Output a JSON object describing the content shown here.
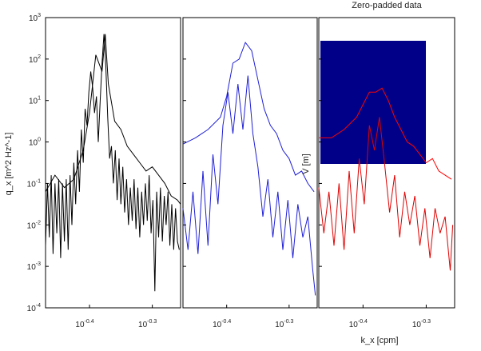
{
  "chart_data": [
    {
      "type": "line",
      "panel": "left",
      "title": "",
      "ylabel": "q_x [m^2 Hz^-1]",
      "xlabel": "",
      "xscale": "log",
      "yscale": "log",
      "xlim_log10": [
        -0.47,
        -0.255
      ],
      "ylim_log10": [
        -4,
        3
      ],
      "x_tick_labels": [
        "10^-0.4",
        "10^-0.3"
      ],
      "y_tick_labels": [
        "10^-4",
        "10^-3",
        "10^-2",
        "10^-1",
        "10^0",
        "10^1",
        "10^2",
        "10^3"
      ],
      "colors": {
        "envelope": "#000000",
        "raw": "#000000",
        "axes": "#000000"
      },
      "series": [
        {
          "role": "envelope",
          "x_log10": [
            -0.47,
            -0.455,
            -0.44,
            -0.425,
            -0.41,
            -0.4,
            -0.39,
            -0.38,
            -0.375,
            -0.37,
            -0.36,
            -0.35,
            -0.34,
            -0.33,
            -0.32,
            -0.31,
            -0.3,
            -0.29,
            -0.28,
            -0.27,
            -0.26,
            -0.255
          ],
          "y_log10": [
            -1.2,
            -0.8,
            -1.1,
            -0.9,
            -0.2,
            0.7,
            2.1,
            1.7,
            2.6,
            1.4,
            0.5,
            0.3,
            -0.1,
            -0.3,
            -0.5,
            -0.7,
            -0.6,
            -0.8,
            -1.0,
            -1.3,
            -1.4,
            -1.5
          ]
        },
        {
          "role": "raw",
          "x_log10": [
            -0.47,
            -0.467,
            -0.464,
            -0.461,
            -0.458,
            -0.455,
            -0.452,
            -0.449,
            -0.446,
            -0.443,
            -0.44,
            -0.437,
            -0.434,
            -0.431,
            -0.428,
            -0.425,
            -0.422,
            -0.419,
            -0.416,
            -0.413,
            -0.41,
            -0.407,
            -0.404,
            -0.401,
            -0.398,
            -0.395,
            -0.392,
            -0.389,
            -0.386,
            -0.383,
            -0.38,
            -0.377,
            -0.374,
            -0.371,
            -0.368,
            -0.365,
            -0.362,
            -0.359,
            -0.356,
            -0.353,
            -0.35,
            -0.347,
            -0.344,
            -0.341,
            -0.338,
            -0.335,
            -0.332,
            -0.329,
            -0.326,
            -0.323,
            -0.32,
            -0.317,
            -0.314,
            -0.311,
            -0.308,
            -0.305,
            -0.302,
            -0.299,
            -0.296,
            -0.293,
            -0.29,
            -0.287,
            -0.284,
            -0.281,
            -0.278,
            -0.275,
            -0.272,
            -0.269,
            -0.266,
            -0.263,
            -0.26,
            -0.257
          ],
          "y_log10": [
            -2.5,
            -1.0,
            -2.3,
            -0.8,
            -2.7,
            -1.0,
            -2.2,
            -0.9,
            -2.8,
            -1.0,
            -2.4,
            -0.9,
            -2.6,
            -0.8,
            -2.0,
            -0.5,
            -1.5,
            -0.2,
            -1.2,
            0.3,
            -0.5,
            0.8,
            0.4,
            1.2,
            1.7,
            1.3,
            0.7,
            1.1,
            0.0,
            1.0,
            1.9,
            2.6,
            1.8,
            0.6,
            -0.4,
            -0.1,
            -1.0,
            -0.2,
            -1.4,
            -0.4,
            -1.5,
            -0.6,
            -1.7,
            -0.9,
            -2.0,
            -1.1,
            -1.9,
            -0.9,
            -2.1,
            -1.1,
            -2.3,
            -1.2,
            -2.0,
            -1.0,
            -1.9,
            -0.8,
            -2.2,
            -1.4,
            -3.6,
            -1.2,
            -2.3,
            -1.1,
            -2.4,
            -1.3,
            -2.0,
            -1.2,
            -2.5,
            -1.5,
            -2.6,
            -1.6,
            -2.4,
            -2.6
          ]
        }
      ]
    },
    {
      "type": "line",
      "panel": "middle",
      "title": "",
      "xscale": "log",
      "yscale": "log",
      "xlim_log10": [
        -0.47,
        -0.255
      ],
      "ylim_log10": [
        -4,
        3
      ],
      "x_tick_labels": [
        "10^-0.4",
        "10^-0.3"
      ],
      "colors": {
        "envelope": "#1f1fd6",
        "raw": "#1f1fd6"
      },
      "series": [
        {
          "role": "envelope",
          "x_log10": [
            -0.47,
            -0.45,
            -0.43,
            -0.41,
            -0.4,
            -0.39,
            -0.38,
            -0.37,
            -0.36,
            -0.35,
            -0.34,
            -0.33,
            -0.32,
            -0.31,
            -0.3,
            -0.29,
            -0.28,
            -0.27,
            -0.26
          ],
          "y_log10": [
            -0.05,
            0.1,
            0.3,
            0.6,
            1.1,
            1.9,
            2.0,
            2.4,
            2.2,
            1.5,
            0.8,
            0.4,
            0.2,
            -0.2,
            -0.4,
            -0.8,
            -0.7,
            -1.0,
            -1.2
          ]
        },
        {
          "role": "raw",
          "x_log10": [
            -0.47,
            -0.462,
            -0.454,
            -0.446,
            -0.438,
            -0.43,
            -0.422,
            -0.414,
            -0.406,
            -0.398,
            -0.39,
            -0.382,
            -0.374,
            -0.366,
            -0.358,
            -0.35,
            -0.342,
            -0.334,
            -0.326,
            -0.318,
            -0.31,
            -0.302,
            -0.294,
            -0.286,
            -0.278,
            -0.27,
            -0.262,
            -0.258
          ],
          "y_log10": [
            -1.6,
            -2.6,
            -1.2,
            -2.7,
            -0.7,
            -2.5,
            -0.3,
            -1.5,
            0.4,
            1.2,
            0.2,
            1.4,
            0.3,
            1.6,
            0.2,
            -0.6,
            -1.8,
            -0.9,
            -2.3,
            -1.2,
            -2.6,
            -1.4,
            -2.8,
            -1.5,
            -2.3,
            -1.8,
            -3.1,
            -3.7
          ]
        }
      ]
    },
    {
      "type": "line",
      "panel": "right",
      "title": "Zero-padded data",
      "xlabel": "k_x [cpm]",
      "overlay_label": "V [m]",
      "xscale": "log",
      "yscale": "log",
      "xlim_log10": [
        -0.47,
        -0.255
      ],
      "ylim_log10": [
        -4,
        3
      ],
      "x_tick_labels": [
        "10^-0.4",
        "10^-0.3"
      ],
      "colors": {
        "envelope": "#ff0000",
        "raw": "#e00000",
        "inset_fill": "#000088"
      },
      "series": [
        {
          "role": "envelope",
          "x_log10": [
            -0.47,
            -0.45,
            -0.43,
            -0.41,
            -0.4,
            -0.39,
            -0.38,
            -0.37,
            -0.36,
            -0.35,
            -0.34,
            -0.33,
            -0.32,
            -0.31,
            -0.3,
            -0.29,
            -0.28,
            -0.27,
            -0.26
          ],
          "y_log10": [
            0.1,
            0.1,
            0.3,
            0.6,
            0.9,
            1.2,
            1.2,
            1.3,
            1.0,
            0.6,
            0.3,
            0.0,
            -0.1,
            -0.3,
            -0.5,
            -0.4,
            -0.7,
            -0.8,
            -0.9
          ]
        },
        {
          "role": "raw",
          "x_log10": [
            -0.47,
            -0.462,
            -0.454,
            -0.446,
            -0.438,
            -0.43,
            -0.422,
            -0.414,
            -0.406,
            -0.398,
            -0.39,
            -0.382,
            -0.374,
            -0.366,
            -0.358,
            -0.35,
            -0.342,
            -0.334,
            -0.326,
            -0.318,
            -0.31,
            -0.302,
            -0.294,
            -0.286,
            -0.278,
            -0.27,
            -0.262,
            -0.258
          ],
          "y_log10": [
            -1.1,
            -2.2,
            -1.2,
            -2.5,
            -1.0,
            -2.6,
            -0.7,
            -2.2,
            -0.4,
            -1.5,
            0.4,
            -0.2,
            0.6,
            -0.5,
            -1.7,
            -0.8,
            -2.3,
            -1.2,
            -2.0,
            -1.3,
            -2.5,
            -1.6,
            -2.8,
            -1.6,
            -2.2,
            -1.8,
            -3.1,
            -2.0
          ]
        }
      ]
    }
  ]
}
